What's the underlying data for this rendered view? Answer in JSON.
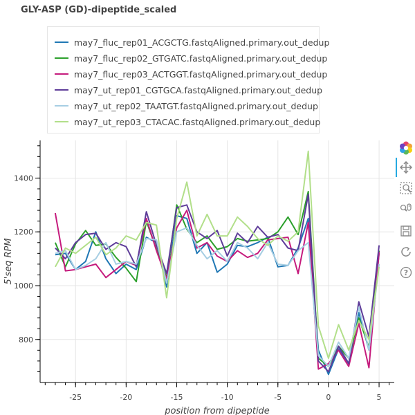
{
  "chart_data": {
    "type": "line",
    "title": "GLY-ASP (GD)-dipeptide_scaled",
    "xlabel": "position from dipeptide",
    "ylabel": "5'seq RPM",
    "xlim": [
      -28.5,
      6.5
    ],
    "ylim": [
      640,
      1540
    ],
    "xticks": [
      -25,
      -20,
      -15,
      -10,
      -5,
      0,
      5
    ],
    "xtick_labels": [
      "-25",
      "-20",
      "-15",
      "-10",
      "-5",
      "0",
      "5"
    ],
    "yticks": [
      800,
      1000,
      1200,
      1400
    ],
    "ytick_labels": [
      "800",
      "1000",
      "1200",
      "1400"
    ],
    "grid": true,
    "legend_position": "top-left (above plot)",
    "x": [
      -27,
      -26,
      -25,
      -24,
      -23,
      -22,
      -21,
      -20,
      -19,
      -18,
      -17,
      -16,
      -15,
      -14,
      -13,
      -12,
      -11,
      -10,
      -9,
      -8,
      -7,
      -6,
      -5,
      -4,
      -3,
      -2,
      -1,
      0,
      1,
      2,
      3,
      4,
      5
    ],
    "series": [
      {
        "name": "may7_fluc_rep01_ACGCTG.fastqAligned.primary.out_dedup",
        "color": "#1f77b4",
        "values": [
          1115,
          1120,
          1060,
          1090,
          1200,
          1100,
          1045,
          1080,
          1060,
          1180,
          1160,
          995,
          1260,
          1250,
          1120,
          1160,
          1050,
          1080,
          1150,
          1145,
          1160,
          1180,
          1070,
          1075,
          1140,
          1250,
          760,
          670,
          765,
          710,
          900,
          760,
          1120
        ]
      },
      {
        "name": "may7_fluc_rep02_GTGATC.fastqAligned.primary.out_dedup",
        "color": "#2ca02c",
        "values": [
          1160,
          1070,
          1155,
          1205,
          1150,
          1155,
          1105,
          1065,
          1015,
          1240,
          1135,
          1030,
          1300,
          1210,
          1160,
          1185,
          1135,
          1145,
          1175,
          1165,
          1170,
          1175,
          1200,
          1255,
          1190,
          1350,
          730,
          700,
          775,
          730,
          880,
          770,
          1130
        ]
      },
      {
        "name": "may7_fluc_rep03_ACTGGT.fastqAligned.primary.out_dedup",
        "color": "#c51b7d",
        "values": [
          1270,
          1055,
          1060,
          1070,
          1080,
          1030,
          1060,
          1090,
          1075,
          1250,
          1130,
          1025,
          1215,
          1280,
          1140,
          1160,
          1110,
          1090,
          1130,
          1105,
          1120,
          1170,
          1175,
          1180,
          1045,
          1235,
          690,
          710,
          760,
          700,
          860,
          695,
          1125
        ]
      },
      {
        "name": "may7_ut_rep01_CGTGCA.fastqAligned.primary.out_dedup",
        "color": "#5e3c99",
        "values": [
          1140,
          1100,
          1160,
          1190,
          1195,
          1135,
          1160,
          1145,
          1070,
          1275,
          1150,
          1045,
          1290,
          1300,
          1200,
          1175,
          1205,
          1110,
          1195,
          1160,
          1220,
          1180,
          1190,
          1140,
          1130,
          1340,
          720,
          680,
          775,
          710,
          940,
          810,
          1150
        ]
      },
      {
        "name": "may7_ut_rep02_TAATGT.fastqAligned.primary.out_dedup",
        "color": "#a6cee3",
        "values": [
          1120,
          1130,
          1060,
          1075,
          1100,
          1160,
          1080,
          1090,
          1080,
          1175,
          1170,
          1010,
          1200,
          1215,
          1150,
          1100,
          1130,
          1090,
          1160,
          1140,
          1100,
          1160,
          1080,
          1075,
          1130,
          1160,
          740,
          700,
          790,
          730,
          920,
          760,
          1080
        ]
      },
      {
        "name": "may7_ut_rep03_CTACAC.fastqAligned.primary.out_dedup",
        "color": "#b2df8a",
        "values": [
          1070,
          1140,
          1120,
          1150,
          1180,
          1115,
          1140,
          1185,
          1170,
          1235,
          1225,
          955,
          1250,
          1385,
          1185,
          1265,
          1185,
          1185,
          1255,
          1220,
          1175,
          1150,
          1185,
          1165,
          1200,
          1500,
          850,
          730,
          855,
          760,
          870,
          800,
          1070
        ]
      }
    ]
  },
  "toolbar": {
    "logo": "bokeh-logo-icon",
    "tools": [
      "pan-icon",
      "box-zoom-icon",
      "wheel-zoom-icon",
      "save-icon",
      "reset-icon",
      "help-icon"
    ]
  }
}
